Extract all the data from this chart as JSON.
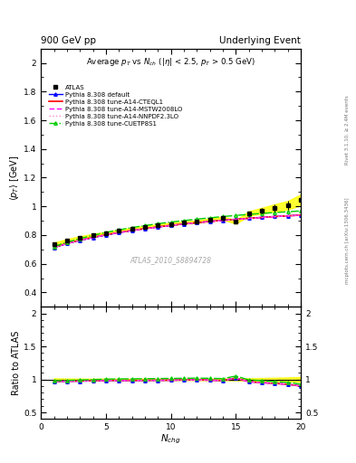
{
  "title_left": "900 GeV pp",
  "title_right": "Underlying Event",
  "watermark": "ATLAS_2010_S8894728",
  "right_label1": "Rivet 3.1.10, ≥ 2.4M events",
  "right_label2": "mcplots.cern.ch [arXiv:1306.3436]",
  "xlim": [
    0,
    20
  ],
  "ylim_main": [
    0.3,
    2.1
  ],
  "ylim_ratio": [
    0.4,
    2.1
  ],
  "yticks_main": [
    0.4,
    0.6,
    0.8,
    1.0,
    1.2,
    1.4,
    1.6,
    1.8,
    2.0
  ],
  "yticks_ratio": [
    0.5,
    1.0,
    1.5,
    2.0
  ],
  "xticks": [
    0,
    5,
    10,
    15,
    20
  ],
  "nch": [
    1,
    2,
    3,
    4,
    5,
    6,
    7,
    8,
    9,
    10,
    11,
    12,
    13,
    14,
    15,
    16,
    17,
    18,
    19,
    20
  ],
  "atlas": [
    0.735,
    0.762,
    0.783,
    0.8,
    0.815,
    0.83,
    0.845,
    0.857,
    0.868,
    0.878,
    0.886,
    0.894,
    0.905,
    0.918,
    0.892,
    0.95,
    0.97,
    0.99,
    1.008,
    1.045
  ],
  "atlas_err": [
    0.012,
    0.01,
    0.009,
    0.008,
    0.008,
    0.007,
    0.007,
    0.007,
    0.007,
    0.008,
    0.008,
    0.009,
    0.01,
    0.011,
    0.013,
    0.016,
    0.02,
    0.025,
    0.03,
    0.038
  ],
  "py_default": [
    0.712,
    0.74,
    0.762,
    0.782,
    0.8,
    0.816,
    0.831,
    0.844,
    0.856,
    0.867,
    0.877,
    0.886,
    0.895,
    0.903,
    0.91,
    0.917,
    0.923,
    0.929,
    0.934,
    0.939
  ],
  "py_cteql1": [
    0.714,
    0.742,
    0.764,
    0.784,
    0.802,
    0.818,
    0.832,
    0.845,
    0.857,
    0.868,
    0.878,
    0.887,
    0.895,
    0.903,
    0.91,
    0.917,
    0.923,
    0.929,
    0.934,
    0.939
  ],
  "py_mstw": [
    0.713,
    0.741,
    0.763,
    0.783,
    0.801,
    0.817,
    0.831,
    0.844,
    0.856,
    0.867,
    0.877,
    0.886,
    0.894,
    0.902,
    0.909,
    0.916,
    0.922,
    0.928,
    0.933,
    0.938
  ],
  "py_nnpdf": [
    0.713,
    0.741,
    0.763,
    0.783,
    0.801,
    0.817,
    0.831,
    0.844,
    0.856,
    0.867,
    0.877,
    0.886,
    0.894,
    0.902,
    0.909,
    0.916,
    0.922,
    0.928,
    0.933,
    0.938
  ],
  "py_cuetp8s1": [
    0.72,
    0.75,
    0.775,
    0.798,
    0.818,
    0.836,
    0.852,
    0.866,
    0.879,
    0.891,
    0.901,
    0.911,
    0.92,
    0.929,
    0.937,
    0.944,
    0.951,
    0.957,
    0.963,
    0.968
  ],
  "color_default": "#0000ff",
  "color_cteql1": "#ff0000",
  "color_mstw": "#ff00ff",
  "color_nnpdf": "#ff88cc",
  "color_cuetp8s1": "#00cc00",
  "color_yellow": "#ffff00",
  "color_green": "#90ee90"
}
